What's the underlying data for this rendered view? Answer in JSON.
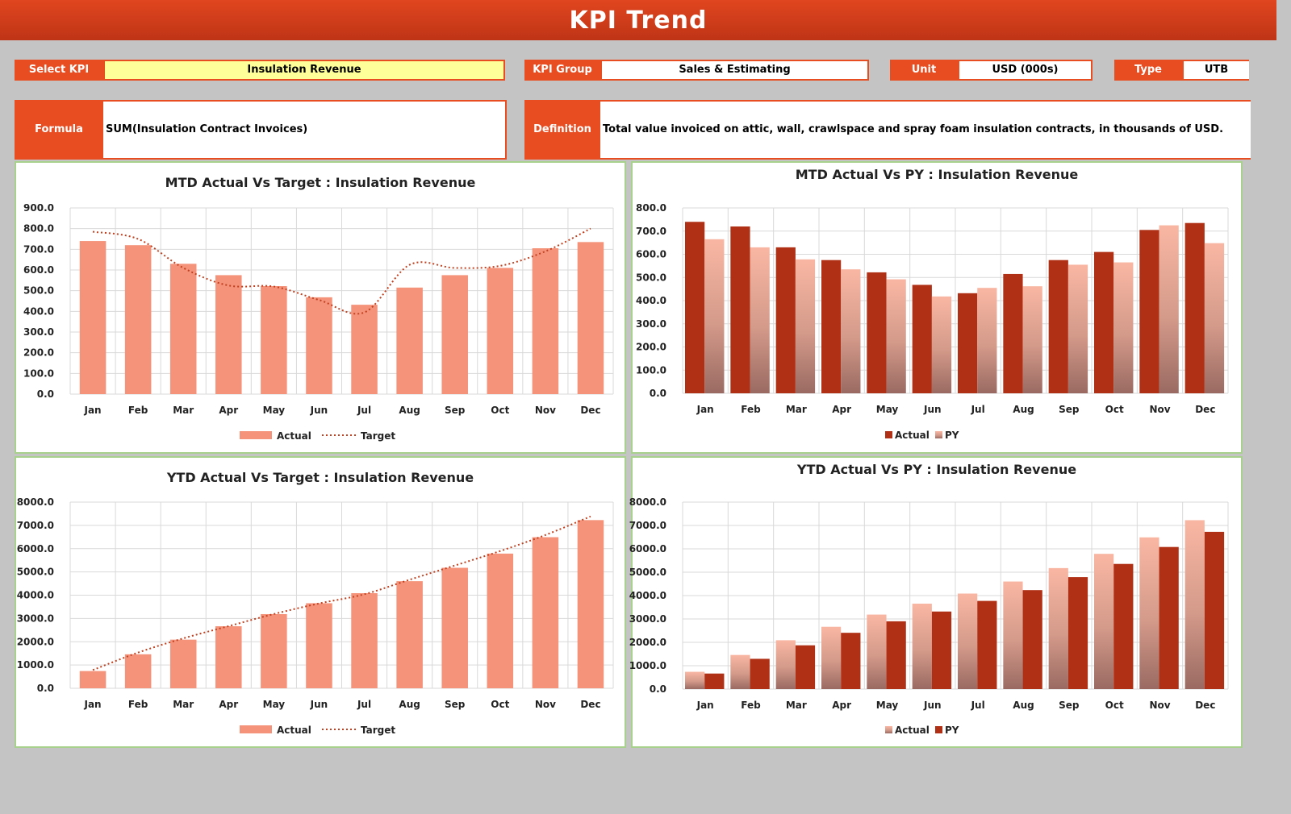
{
  "header": {
    "title": "KPI Trend"
  },
  "fields": {
    "select_kpi_label": "Select KPI",
    "select_kpi_value": "Insulation Revenue",
    "kpi_group_label": "KPI Group",
    "kpi_group_value": "Sales & Estimating",
    "unit_label": "Unit",
    "unit_value": "USD (000s)",
    "type_label": "Type",
    "type_value": "UTB",
    "formula_label": "Formula",
    "formula_value": "SUM(Insulation Contract Invoices)",
    "definition_label": "Definition",
    "definition_value": "Total value invoiced on attic, wall, crawlspace and spray foam insulation contracts, in thousands of USD."
  },
  "colors": {
    "header": "#d23c1b",
    "label_bg": "#e84d22",
    "actual_light": "#f4937a",
    "actual_dark": "#b03016",
    "target_line": "#c0401f",
    "panel_border": "#a9d18e"
  },
  "chart_data": [
    {
      "type": "bar",
      "title": "MTD Actual Vs Target : Insulation Revenue",
      "categories": [
        "Jan",
        "Feb",
        "Mar",
        "Apr",
        "May",
        "Jun",
        "Jul",
        "Aug",
        "Sep",
        "Oct",
        "Nov",
        "Dec"
      ],
      "ylim": [
        0,
        900
      ],
      "yticks": [
        "0.0",
        "100.0",
        "200.0",
        "300.0",
        "400.0",
        "500.0",
        "600.0",
        "700.0",
        "800.0",
        "900.0"
      ],
      "series": [
        {
          "name": "Actual",
          "kind": "bar",
          "values": [
            740,
            720,
            630,
            575,
            522,
            468,
            432,
            515,
            575,
            610,
            705,
            735
          ]
        },
        {
          "name": "Target",
          "kind": "line",
          "values": [
            785,
            750,
            610,
            525,
            520,
            455,
            395,
            625,
            610,
            620,
            690,
            800
          ]
        }
      ],
      "legend": "bottom"
    },
    {
      "type": "bar",
      "title": "MTD Actual Vs PY : Insulation Revenue",
      "categories": [
        "Jan",
        "Feb",
        "Mar",
        "Apr",
        "May",
        "Jun",
        "Jul",
        "Aug",
        "Sep",
        "Oct",
        "Nov",
        "Dec"
      ],
      "ylim": [
        0,
        800
      ],
      "yticks": [
        "0.0",
        "100.0",
        "200.0",
        "300.0",
        "400.0",
        "500.0",
        "600.0",
        "700.0",
        "800.0"
      ],
      "series": [
        {
          "name": "Actual",
          "kind": "bar",
          "values": [
            740,
            720,
            630,
            575,
            522,
            468,
            432,
            515,
            575,
            610,
            705,
            735
          ]
        },
        {
          "name": "PY",
          "kind": "bar",
          "values": [
            665,
            630,
            578,
            535,
            492,
            418,
            455,
            462,
            555,
            565,
            725,
            648
          ]
        }
      ],
      "legend": "bottom"
    },
    {
      "type": "bar",
      "title": "YTD Actual Vs Target : Insulation Revenue",
      "categories": [
        "Jan",
        "Feb",
        "Mar",
        "Apr",
        "May",
        "Jun",
        "Jul",
        "Aug",
        "Sep",
        "Oct",
        "Nov",
        "Dec"
      ],
      "ylim": [
        0,
        8000
      ],
      "yticks": [
        "0.0",
        "1000.0",
        "2000.0",
        "3000.0",
        "4000.0",
        "5000.0",
        "6000.0",
        "7000.0",
        "8000.0"
      ],
      "series": [
        {
          "name": "Actual",
          "kind": "bar",
          "values": [
            740,
            1460,
            2090,
            2665,
            3187,
            3655,
            4087,
            4602,
            5177,
            5787,
            6492,
            7227
          ]
        },
        {
          "name": "Target",
          "kind": "line",
          "values": [
            785,
            1535,
            2145,
            2670,
            3190,
            3645,
            4040,
            4665,
            5275,
            5895,
            6585,
            7385
          ]
        }
      ],
      "legend": "bottom"
    },
    {
      "type": "bar",
      "title": "YTD Actual Vs PY : Insulation Revenue",
      "categories": [
        "Jan",
        "Feb",
        "Mar",
        "Apr",
        "May",
        "Jun",
        "Jul",
        "Aug",
        "Sep",
        "Oct",
        "Nov",
        "Dec"
      ],
      "ylim": [
        0,
        8000
      ],
      "yticks": [
        "0.0",
        "1000.0",
        "2000.0",
        "3000.0",
        "4000.0",
        "5000.0",
        "6000.0",
        "7000.0",
        "8000.0"
      ],
      "series": [
        {
          "name": "Actual",
          "kind": "bar",
          "values": [
            740,
            1460,
            2090,
            2665,
            3187,
            3655,
            4087,
            4602,
            5177,
            5787,
            6492,
            7227
          ]
        },
        {
          "name": "PY",
          "kind": "bar",
          "values": [
            665,
            1295,
            1873,
            2408,
            2900,
            3318,
            3773,
            4235,
            4790,
            5355,
            6080,
            6728
          ]
        }
      ],
      "legend": "bottom"
    }
  ]
}
